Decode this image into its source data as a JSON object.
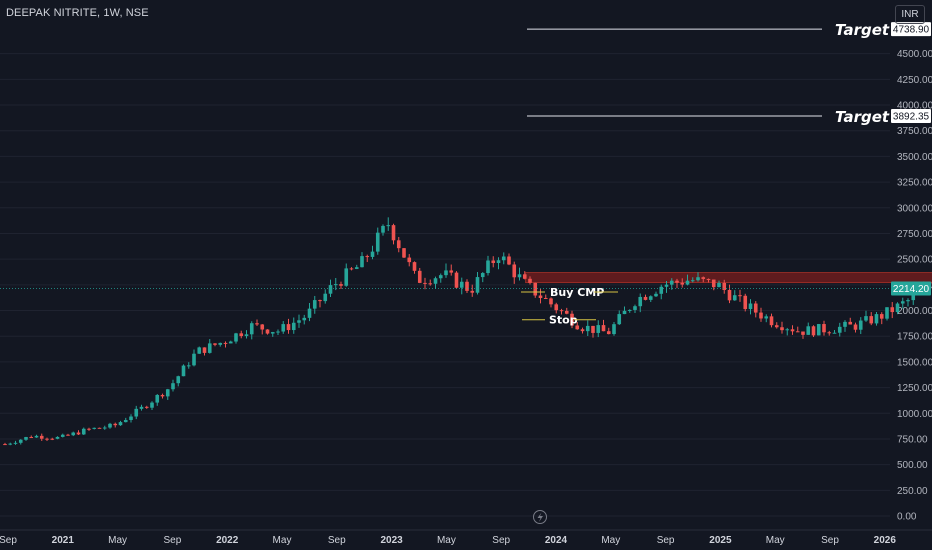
{
  "header": {
    "symbol_title": "DEEPAK NITRITE, 1W, NSE",
    "currency": "INR"
  },
  "chart_data": {
    "type": "candlestick",
    "title": "DEEPAK NITRITE, 1W, NSE",
    "y_ticks": [
      "0.00",
      "250.00",
      "500.00",
      "750.00",
      "1000.00",
      "1250.00",
      "1500.00",
      "1750.00",
      "2000.00",
      "2250.00",
      "2500.00",
      "2750.00",
      "3000.00",
      "3250.00",
      "3500.00",
      "3750.00",
      "4000.00",
      "4250.00",
      "4500.00"
    ],
    "x_ticks": [
      "Sep",
      "2021",
      "May",
      "Sep",
      "2022",
      "May",
      "Sep",
      "2023",
      "May",
      "Sep",
      "2024",
      "May",
      "Sep",
      "2025",
      "May",
      "Sep",
      "2026"
    ],
    "ylim": [
      0,
      4900
    ],
    "last_price": 2214.2,
    "last_price_label": "2214.20",
    "path": [
      [
        "2020-09",
        700
      ],
      [
        "2020-10",
        780
      ],
      [
        "2020-11",
        760
      ],
      [
        "2020-12",
        840
      ],
      [
        "2021-01",
        880
      ],
      [
        "2021-02",
        1050
      ],
      [
        "2021-03",
        1250
      ],
      [
        "2021-04",
        1600
      ],
      [
        "2021-05",
        1700
      ],
      [
        "2021-06",
        1850
      ],
      [
        "2021-07",
        1800
      ],
      [
        "2021-08",
        1950
      ],
      [
        "2021-09",
        2250
      ],
      [
        "2021-10",
        2450
      ],
      [
        "2021-11",
        2850
      ],
      [
        "2021-12",
        2300
      ],
      [
        "2022-01",
        2350
      ],
      [
        "2022-02",
        2200
      ],
      [
        "2022-03",
        2550
      ],
      [
        "2022-04",
        2250
      ],
      [
        "2022-05",
        2050
      ],
      [
        "2022-06",
        1850
      ],
      [
        "2022-07",
        1780
      ],
      [
        "2022-08",
        2100
      ],
      [
        "2022-09",
        2250
      ],
      [
        "2022-10",
        2300
      ],
      [
        "2022-11",
        2250
      ],
      [
        "2022-12",
        2050
      ],
      [
        "2023-01",
        1900
      ],
      [
        "2023-02",
        1800
      ],
      [
        "2023-03",
        1820
      ],
      [
        "2023-04",
        1850
      ],
      [
        "2023-05",
        1950
      ],
      [
        "2023-06",
        2100
      ],
      [
        "2023-07",
        2250
      ],
      [
        "2023-08",
        2000
      ],
      [
        "2023-09",
        2150
      ],
      [
        "2023-10",
        2300
      ],
      [
        "2023-11",
        2100
      ],
      [
        "2023-12",
        2214
      ]
    ],
    "zones": [
      {
        "from": 2270,
        "to": 2370,
        "start": "2022-04",
        "end": "2024-05",
        "color": "#7a1e1e"
      }
    ],
    "levels": [
      {
        "name": "Target 2",
        "price": 4738.9,
        "price_label": "4738.90"
      },
      {
        "name": "Target 1",
        "price": 3892.35,
        "price_label": "3892.35"
      }
    ],
    "entry": {
      "label": "Buy CMP",
      "price": 2180
    },
    "stop": {
      "label": "Stop",
      "price": 1910
    }
  },
  "colors": {
    "up": "#26a69a",
    "down": "#ef5350",
    "background": "#131722",
    "grid": "#1f2330"
  },
  "icons": {
    "footer": "lightning-bolt-icon"
  }
}
